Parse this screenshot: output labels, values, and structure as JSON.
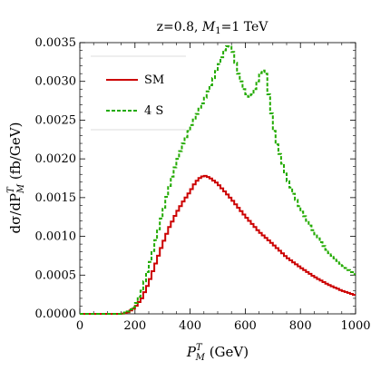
{
  "chart_data": {
    "type": "line",
    "title_html": "z=0.8,  M₁=1 TeV",
    "title_parts": {
      "pre": "z=0.8,  ",
      "var": "M",
      "sub": "1",
      "post": "=1 TeV"
    },
    "xlabel_parts": {
      "var": "P",
      "sub": "M",
      "sup": "T",
      "post": " (GeV)"
    },
    "ylabel_parts": {
      "pre": "dσ/dP",
      "sub": "M",
      "sup": "T",
      "post": " (fb/GeV)"
    },
    "xlim": [
      0,
      1000
    ],
    "ylim": [
      0,
      0.0035
    ],
    "xticks": [
      "0",
      "200",
      "400",
      "600",
      "800",
      "1000"
    ],
    "yticks": [
      "0.0000",
      "0.0005",
      "0.0010",
      "0.0015",
      "0.0020",
      "0.0025",
      "0.0030",
      "0.0035"
    ],
    "legend_position": "upper-left",
    "grid": false,
    "series": [
      {
        "name": "SM",
        "color": "#cc0000",
        "style": "solid",
        "points": [
          [
            0,
            0
          ],
          [
            150,
            0
          ],
          [
            175,
            2e-05
          ],
          [
            200,
            8e-05
          ],
          [
            225,
            0.0002
          ],
          [
            250,
            0.0004
          ],
          [
            275,
            0.00065
          ],
          [
            300,
            0.0009
          ],
          [
            325,
            0.00112
          ],
          [
            350,
            0.0013
          ],
          [
            375,
            0.00145
          ],
          [
            400,
            0.00158
          ],
          [
            420,
            0.0017
          ],
          [
            440,
            0.00177
          ],
          [
            455,
            0.00178
          ],
          [
            470,
            0.00176
          ],
          [
            500,
            0.00168
          ],
          [
            525,
            0.00158
          ],
          [
            550,
            0.00148
          ],
          [
            575,
            0.00137
          ],
          [
            600,
            0.00126
          ],
          [
            625,
            0.00116
          ],
          [
            650,
            0.00106
          ],
          [
            700,
            0.0009
          ],
          [
            750,
            0.00073
          ],
          [
            800,
            0.0006
          ],
          [
            850,
            0.00048
          ],
          [
            900,
            0.00038
          ],
          [
            950,
            0.0003
          ],
          [
            1000,
            0.00024
          ]
        ]
      },
      {
        "name": "4 S",
        "color": "#22aa00",
        "style": "dashed",
        "points": [
          [
            0,
            0
          ],
          [
            150,
            0
          ],
          [
            175,
            3e-05
          ],
          [
            200,
            0.0001
          ],
          [
            225,
            0.0003
          ],
          [
            250,
            0.0006
          ],
          [
            275,
            0.00095
          ],
          [
            300,
            0.0013
          ],
          [
            325,
            0.00165
          ],
          [
            350,
            0.00195
          ],
          [
            375,
            0.0022
          ],
          [
            400,
            0.0024
          ],
          [
            425,
            0.00258
          ],
          [
            450,
            0.00275
          ],
          [
            475,
            0.00295
          ],
          [
            500,
            0.00318
          ],
          [
            525,
            0.0034
          ],
          [
            540,
            0.00348
          ],
          [
            555,
            0.00338
          ],
          [
            575,
            0.0031
          ],
          [
            600,
            0.00285
          ],
          [
            615,
            0.0028
          ],
          [
            630,
            0.00285
          ],
          [
            645,
            0.003
          ],
          [
            660,
            0.00316
          ],
          [
            675,
            0.0031
          ],
          [
            690,
            0.0027
          ],
          [
            710,
            0.00225
          ],
          [
            750,
            0.00175
          ],
          [
            800,
            0.00135
          ],
          [
            850,
            0.00105
          ],
          [
            900,
            0.0008
          ],
          [
            950,
            0.00063
          ],
          [
            1000,
            0.0005
          ]
        ]
      }
    ]
  }
}
